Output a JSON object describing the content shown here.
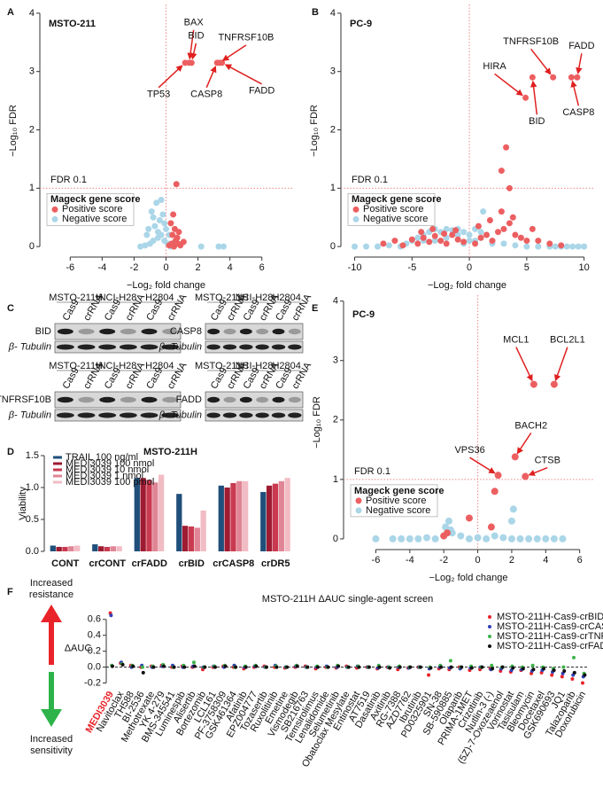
{
  "chart_data": [
    {
      "type": "scatter",
      "panel": "A",
      "title": "MSTO-211",
      "xlabel": "−Log₂ fold change",
      "ylabel": "−Log₁₀ FDR",
      "xlim": [
        -7.9,
        7.9
      ],
      "ylim": [
        -0.18,
        4.15
      ],
      "xticks": [
        -6,
        -4,
        -2,
        0,
        2,
        4,
        6
      ],
      "yticks": [
        0,
        1,
        2,
        3,
        4
      ],
      "hline": 1,
      "hline_label": "FDR 0.1",
      "vline": 0,
      "legend_title": "Mageck gene score",
      "series": [
        {
          "name": "Positive score",
          "color": "#ec5f61",
          "x": [
            0.2,
            0.35,
            0.5,
            0.6,
            0.75,
            0.9,
            1.1,
            0.4,
            0.55,
            0.7,
            0.3,
            0.45,
            0.65,
            0.8,
            1.2,
            1.45,
            1.6,
            3.2,
            3.35,
            3.5
          ],
          "y": [
            0.02,
            0.05,
            0,
            0.1,
            0.05,
            0.02,
            0.08,
            0.2,
            0.3,
            0.15,
            0.4,
            0.55,
            1.07,
            0.25,
            3.15,
            3.15,
            3.15,
            3.15,
            3.15,
            3.15
          ],
          "labels": [
            null,
            null,
            null,
            null,
            null,
            null,
            null,
            null,
            null,
            null,
            null,
            null,
            null,
            null,
            "TP53",
            "BAX",
            "BID",
            "CASP8",
            "TNFRSF10B",
            "FADD"
          ]
        },
        {
          "name": "Negative score",
          "color": "#aad6e8",
          "x": [
            -1.6,
            -1.3,
            -1.0,
            -0.8,
            -0.5,
            -0.3,
            -0.1,
            0.1,
            0.3,
            -1.1,
            -0.7,
            -0.4,
            -0.2,
            0,
            -0.9,
            -0.6,
            -0.3,
            -0.5,
            -1.2,
            -0.1,
            2.2,
            3.3,
            3.6,
            -0.8,
            0.2
          ],
          "y": [
            0,
            0.02,
            0.05,
            0.1,
            0.15,
            0.2,
            0.1,
            0.05,
            0,
            0.3,
            0.35,
            0.45,
            0.55,
            0.3,
            0.6,
            0.75,
            0.8,
            0.25,
            0.2,
            0.4,
            0,
            0,
            0,
            0.5,
            0.2
          ]
        }
      ]
    },
    {
      "type": "scatter",
      "panel": "B",
      "title": "PC-9",
      "xlabel": "−Log₂ fold change",
      "ylabel": "−Log₁₀ FDR",
      "xlim": [
        -11.2,
        10.8
      ],
      "ylim": [
        -0.18,
        4.15
      ],
      "xticks": [
        -10,
        -5,
        0,
        5,
        10
      ],
      "yticks": [
        0,
        1,
        2,
        3,
        4
      ],
      "hline": 1,
      "hline_label": "FDR 0.1",
      "vline": 0,
      "legend_title": "Mageck gene score",
      "series": [
        {
          "name": "Positive score",
          "color": "#ec5f61",
          "x": [
            -7.5,
            -6.5,
            -5.8,
            -5,
            -4.5,
            -4,
            -3.5,
            -3,
            -2.5,
            -2,
            -1.5,
            -1,
            -0.5,
            0.5,
            1,
            1.5,
            2,
            2.5,
            3,
            3.5,
            4,
            4.5,
            5,
            5.5,
            6,
            7,
            8,
            -4.2,
            -3.2,
            -2.2,
            -1.2,
            0.8,
            1.8,
            2.8,
            3.8,
            3.5,
            2.8,
            3.2,
            4.9,
            5.5,
            7.3,
            8.9,
            9.4
          ],
          "y": [
            0.05,
            0.1,
            0.02,
            0.12,
            0.05,
            0.15,
            0.08,
            0.18,
            0.1,
            0.05,
            0.2,
            0.12,
            0.08,
            0.05,
            0.15,
            0.2,
            0.1,
            0.25,
            0.3,
            0.4,
            0.2,
            0.15,
            0.1,
            0.3,
            0.1,
            0.05,
            0.02,
            0.25,
            0.3,
            0.22,
            0.28,
            0.35,
            0.45,
            0.6,
            0.5,
            1.0,
            1.3,
            1.7,
            2.55,
            2.9,
            2.9,
            2.9,
            2.9
          ],
          "labels": [
            null,
            null,
            null,
            null,
            null,
            null,
            null,
            null,
            null,
            null,
            null,
            null,
            null,
            null,
            null,
            null,
            null,
            null,
            null,
            null,
            null,
            null,
            null,
            null,
            null,
            null,
            null,
            null,
            null,
            null,
            null,
            null,
            null,
            null,
            null,
            null,
            null,
            null,
            "HIRA",
            "BID",
            "TNFRSF10B",
            "CASP8",
            "FADD"
          ]
        },
        {
          "name": "Negative score",
          "color": "#aad6e8",
          "x": [
            -10,
            -9,
            -8,
            -7,
            -6,
            -5.5,
            -5,
            -4.5,
            -4,
            -3.5,
            -3,
            -2.5,
            -2,
            -1.5,
            -1,
            -0.5,
            0,
            0.5,
            1,
            1.5,
            2,
            3,
            4,
            5,
            6,
            7,
            7.5,
            8,
            8.5,
            9,
            9.5,
            10,
            -3,
            -2,
            -1,
            0,
            1,
            2,
            -4,
            -0.5,
            0.5,
            1.2
          ],
          "y": [
            0,
            0,
            0,
            0.02,
            0,
            0.05,
            0.1,
            0.15,
            0.2,
            0.25,
            0.3,
            0.25,
            0.3,
            0.28,
            0.3,
            0.25,
            0.2,
            0.3,
            0.25,
            0.2,
            0.1,
            0.05,
            0.02,
            0,
            0,
            0,
            0,
            0,
            0,
            0,
            0,
            0,
            0.1,
            0.15,
            0.2,
            0.1,
            0.15,
            0.05,
            0.1,
            0.05,
            0.1,
            0.6
          ]
        }
      ]
    },
    {
      "type": "bar",
      "panel": "D",
      "title": "MSTO-211H",
      "ylabel": "Viability",
      "categories": [
        "CONT",
        "crCONT",
        "crFADD",
        "crBID",
        "crCASP8",
        "crDR5"
      ],
      "ylim": [
        0,
        1.5
      ],
      "yticks": [
        {
          "value": 0,
          "label": "0.0"
        },
        0.5,
        {
          "value": 1,
          "label": "1.0"
        },
        1.5
      ],
      "series": [
        {
          "name": "TRAIL 100 ng/ml",
          "color": "#1f4f7a",
          "values": [
            0.09,
            0.11,
            1.15,
            0.9,
            1.03,
            0.93
          ]
        },
        {
          "name": "MEDI3039 100 nmol",
          "color": "#9e1b32",
          "values": [
            0.07,
            0.08,
            1.15,
            0.4,
            1.0,
            1.03
          ]
        },
        {
          "name": "MEDI3039 10 nmol",
          "color": "#c93a50",
          "values": [
            0.07,
            0.07,
            1.12,
            0.39,
            1.07,
            1.06
          ]
        },
        {
          "name": "MEDI3039 1 nmol",
          "color": "#e08595",
          "values": [
            0.08,
            0.08,
            1.08,
            0.37,
            1.1,
            1.1
          ]
        },
        {
          "name": "MEDI3039 100 pmol",
          "color": "#f2bcc5",
          "values": [
            0.09,
            0.08,
            1.2,
            0.64,
            1.1,
            1.15
          ]
        }
      ]
    },
    {
      "type": "scatter",
      "panel": "E",
      "title": "PC-9",
      "xlabel": "−Log₂ fold change",
      "ylabel": "−Log₁₀ FDR",
      "xlim": [
        -7.9,
        6.8
      ],
      "ylim": [
        -0.18,
        4.1
      ],
      "xticks": [
        -6,
        -4,
        -2,
        0,
        2,
        4,
        6
      ],
      "yticks": [
        0,
        1,
        2,
        3,
        4
      ],
      "hline": 1,
      "hline_label": "FDR 0.1",
      "vline": 0,
      "legend_title": "Mageck gene score",
      "series": [
        {
          "name": "Positive score",
          "color": "#ec5f61",
          "x": [
            -2,
            -1.8,
            -0.5,
            1.0,
            1.2,
            2.2,
            2.8,
            3.3,
            4.5,
            0.8
          ],
          "y": [
            0.05,
            0.1,
            0.35,
            0.8,
            1.07,
            1.38,
            1.05,
            2.6,
            2.6,
            0.2
          ],
          "labels": [
            null,
            null,
            null,
            null,
            "VPS36",
            "BACH2",
            "CTSB",
            "MCL1",
            "BCL2L1",
            null
          ]
        },
        {
          "name": "Negative score",
          "color": "#aad6e8",
          "x": [
            -6,
            -5,
            -4.5,
            -4,
            -3.5,
            -3,
            -2.5,
            -2,
            -1.5,
            -1,
            -0.5,
            0,
            0.5,
            1,
            1.5,
            2,
            2.5,
            3,
            3.5,
            4,
            4.5,
            5,
            -1.7,
            -1.9,
            -1.6,
            -1.8,
            2.1,
            2.0
          ],
          "y": [
            0,
            0,
            0,
            0,
            0,
            0.02,
            0,
            0.05,
            0.1,
            0.05,
            0,
            0.02,
            0,
            0.05,
            0.02,
            0,
            0,
            0,
            0,
            0,
            0,
            0,
            0.3,
            0.2,
            0.15,
            0.1,
            0.5,
            0.3
          ]
        }
      ]
    },
    {
      "type": "dot",
      "panel": "F",
      "title": "MSTO-211H ΔAUC single-agent screen",
      "ylabel": "ΔAUC",
      "up_label": [
        "Increased",
        "resistance"
      ],
      "down_label": [
        "Increased",
        "sensitivity"
      ],
      "categories": [
        "MEDI3039",
        "Navitoclax",
        "TH588",
        "BI-2536",
        "Methotrexate",
        "YK 4-279",
        "BMS-345541",
        "Luminespib",
        "Alisertib",
        "Bortezomib",
        "LCL161",
        "PF-3758309",
        "GSK461364",
        "Afatinib",
        "EPZ004777",
        "Tozasertib",
        "Ruxolitinib",
        "Emetine",
        "Vismodegib",
        "SB216763",
        "Temsirolimus",
        "Lenalidomide",
        "Selumetinib",
        "Obatoclax Mesylate",
        "Entinostat",
        "AT7519",
        "Dasatinib",
        "Axitinib",
        "RG-7388",
        "AZD7762",
        "Ibrutinib",
        "PD0325901",
        "SN-38",
        "SB-590885",
        "Olaparib",
        "PRIMA-1MET",
        "Crizotinib",
        "Nutlin-3 (-)",
        "(5Z)-7-Oxozeaenol",
        "Vorinostat",
        "Tasisulam",
        "Bleomycin",
        "Docetaxel",
        "GSK690693",
        "JQ1",
        "Talazoparib",
        "Doxorubicin"
      ],
      "ylim": [
        -0.25,
        0.72
      ],
      "yticks": [
        -0.2,
        {
          "value": 0,
          "label": "0.0"
        },
        0.2,
        0.4,
        0.6
      ],
      "hline": 0,
      "series": [
        {
          "name": "MSTO-211H-Cas9-crBID",
          "color": "#e8242a",
          "values": [
            0.68,
            0.05,
            0.02,
            0,
            0.01,
            0.02,
            0,
            0.01,
            0,
            -0.03,
            0,
            0.01,
            0,
            -0.02,
            0,
            0.01,
            0,
            -0.01,
            0,
            0.01,
            -0.02,
            0,
            -0.01,
            0.01,
            -0.01,
            0,
            -0.02,
            0,
            -0.03,
            -0.01,
            0,
            -0.1,
            -0.02,
            -0.03,
            0,
            -0.04,
            -0.03,
            -0.02,
            -0.05,
            -0.06,
            -0.04,
            -0.08,
            -0.07,
            -0.1,
            -0.12,
            -0.15,
            -0.2
          ]
        },
        {
          "name": "MSTO-211H-Cas9-crCASP8",
          "color": "#2f3fb8",
          "values": [
            0.65,
            0.06,
            0,
            0.02,
            0,
            0.01,
            0.02,
            0,
            0.01,
            0,
            0.01,
            0,
            0.02,
            0,
            0.01,
            0,
            0.02,
            0,
            0.01,
            0,
            0,
            0.01,
            0,
            0,
            0.01,
            0,
            -0.01,
            0,
            0,
            -0.01,
            0,
            -0.02,
            0,
            -0.01,
            -0.02,
            -0.01,
            0,
            -0.03,
            -0.02,
            -0.04,
            -0.03,
            -0.05,
            -0.04,
            -0.06,
            -0.08,
            -0.1,
            -0.12
          ]
        },
        {
          "name": "MSTO-211H-Cas9-crTNFRSF10B",
          "color": "#3cb44a",
          "values": [
            0.02,
            0.04,
            0.02,
            0,
            0.01,
            0.03,
            0,
            0.02,
            0.06,
            0,
            0.01,
            0.02,
            0,
            0.01,
            0.02,
            0,
            0.01,
            0,
            0.02,
            0,
            0.01,
            0,
            0.02,
            0,
            0.01,
            0,
            0.02,
            0,
            0.01,
            0,
            0,
            0,
            0.02,
            0.08,
            0,
            0.01,
            0,
            0.02,
            0,
            0.01,
            0,
            0.02,
            0,
            -0.02,
            0,
            0.12,
            -0.08
          ]
        },
        {
          "name": "MSTO-211H-Cas9-crFADD",
          "color": "#111111",
          "values": [
            0.01,
            0.03,
            0.01,
            -0.07,
            0,
            0.01,
            0,
            0,
            0.01,
            0,
            0,
            0.01,
            0,
            0,
            0.01,
            0,
            0,
            0,
            0.01,
            0,
            0,
            0,
            0.01,
            0,
            0,
            0,
            0,
            -0.01,
            0,
            0,
            0,
            -0.01,
            0,
            0,
            0,
            -0.01,
            0,
            -0.02,
            0,
            -0.01,
            -0.02,
            -0.03,
            -0.02,
            -0.04,
            -0.05,
            -0.07,
            -0.1
          ]
        }
      ]
    }
  ],
  "blots": {
    "panel": "C",
    "groups": [
      "MSTO-211H",
      "NCI-H28",
      "H2804"
    ],
    "lanes": [
      "Cas9",
      "crRNA"
    ],
    "proteins": [
      "BID",
      "CASP8",
      "TNFRSF10B",
      "FADD"
    ],
    "loading": "β- Tubulin"
  }
}
